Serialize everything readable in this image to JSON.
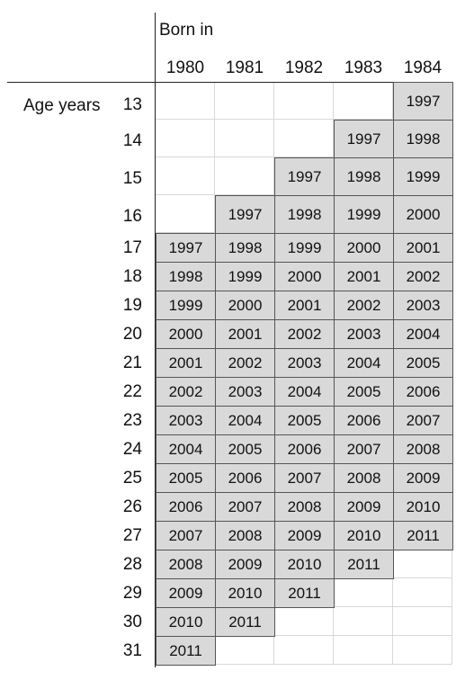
{
  "header": {
    "born_in_label": "Born in",
    "age_label": "Age years"
  },
  "birth_years": [
    "1980",
    "1981",
    "1982",
    "1983",
    "1984"
  ],
  "ages": [
    "13",
    "14",
    "15",
    "16",
    "17",
    "18",
    "19",
    "20",
    "21",
    "22",
    "23",
    "24",
    "25",
    "26",
    "27",
    "28",
    "29",
    "30",
    "31"
  ],
  "rows": [
    [
      "",
      "",
      "",
      "",
      "1997"
    ],
    [
      "",
      "",
      "",
      "1997",
      "1998"
    ],
    [
      "",
      "",
      "1997",
      "1998",
      "1999"
    ],
    [
      "",
      "1997",
      "1998",
      "1999",
      "2000"
    ],
    [
      "1997",
      "1998",
      "1999",
      "2000",
      "2001"
    ],
    [
      "1998",
      "1999",
      "2000",
      "2001",
      "2002"
    ],
    [
      "1999",
      "2000",
      "2001",
      "2002",
      "2003"
    ],
    [
      "2000",
      "2001",
      "2002",
      "2003",
      "2004"
    ],
    [
      "2001",
      "2002",
      "2003",
      "2004",
      "2005"
    ],
    [
      "2002",
      "2003",
      "2004",
      "2005",
      "2006"
    ],
    [
      "2003",
      "2004",
      "2005",
      "2006",
      "2007"
    ],
    [
      "2004",
      "2005",
      "2006",
      "2007",
      "2008"
    ],
    [
      "2005",
      "2006",
      "2007",
      "2008",
      "2009"
    ],
    [
      "2006",
      "2007",
      "2008",
      "2009",
      "2010"
    ],
    [
      "2007",
      "2008",
      "2009",
      "2010",
      "2011"
    ],
    [
      "2008",
      "2009",
      "2010",
      "2011",
      ""
    ],
    [
      "2009",
      "2010",
      "2011",
      "",
      ""
    ],
    [
      "2010",
      "2011",
      "",
      "",
      ""
    ],
    [
      "2011",
      "",
      "",
      "",
      ""
    ]
  ]
}
